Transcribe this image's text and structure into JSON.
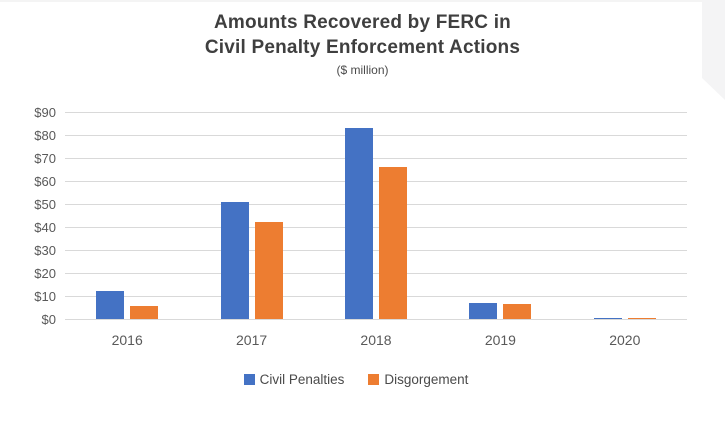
{
  "chart": {
    "title_line1": "Amounts Recovered by FERC in",
    "title_line2": "Civil Penalty Enforcement Actions",
    "subtitle": "($ million)"
  },
  "chart_data": {
    "type": "bar",
    "title": "Amounts Recovered by FERC in Civil Penalty Enforcement Actions",
    "subtitle": "($ million)",
    "categories": [
      "2016",
      "2017",
      "2018",
      "2019",
      "2020"
    ],
    "series": [
      {
        "name": "Civil Penalties",
        "color": "#4472C4",
        "values": [
          12,
          51,
          83,
          7,
          0.5
        ]
      },
      {
        "name": "Disgorgement",
        "color": "#ED7D31",
        "values": [
          5.5,
          42,
          66,
          6.5,
          0.5
        ]
      }
    ],
    "ylim": [
      0,
      90
    ],
    "ytick_step": 10,
    "ytick_labels": [
      "$0",
      "$10",
      "$20",
      "$30",
      "$40",
      "$50",
      "$60",
      "$70",
      "$80",
      "$90"
    ],
    "grid": true,
    "legend_position": "bottom",
    "colors": {
      "gridline": "#d9d9d9",
      "axis_text": "#595959",
      "title_text": "#3f3f3f"
    }
  }
}
